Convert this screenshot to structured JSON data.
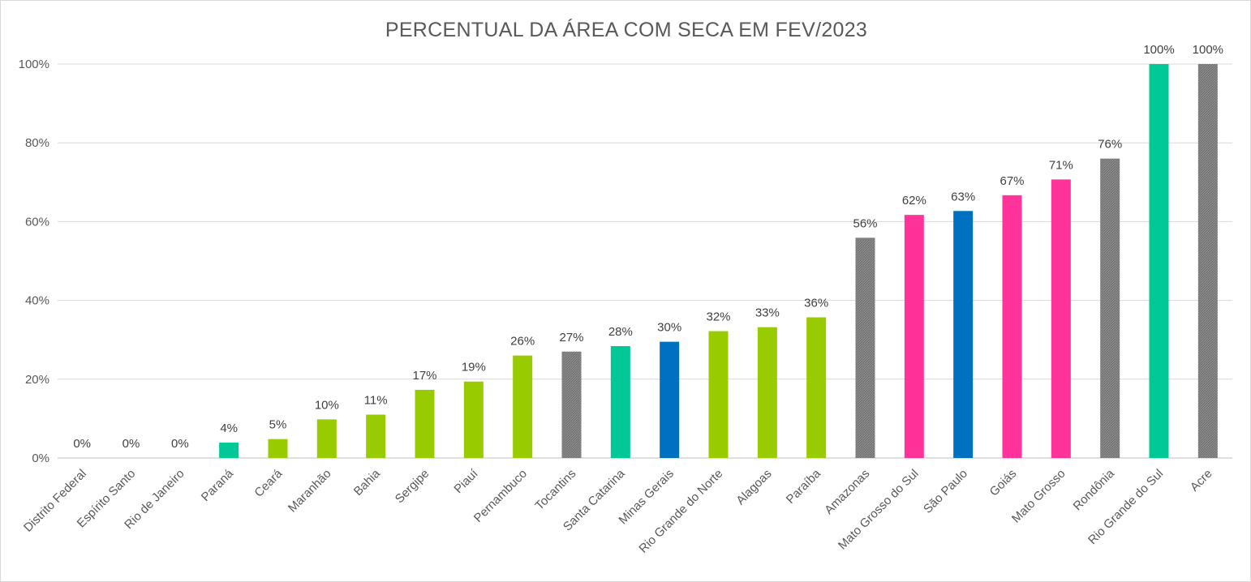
{
  "chart_data": {
    "type": "bar",
    "title": "PERCENTUAL DA ÁREA COM SECA EM FEV/2023",
    "xlabel": "",
    "ylabel": "",
    "ylim": [
      0,
      100
    ],
    "yticks": [
      0,
      20,
      40,
      60,
      80,
      100
    ],
    "ytick_labels": [
      "0%",
      "20%",
      "40%",
      "60%",
      "80%",
      "100%"
    ],
    "grid": true,
    "legend": "none",
    "categories": [
      "Distrito Federal",
      "Espírito Santo",
      "Rio de Janeiro",
      "Paraná",
      "Ceará",
      "Maranhão",
      "Bahia",
      "Sergipe",
      "Piauí",
      "Pernambuco",
      "Tocantins",
      "Santa Catarina",
      "Minas Gerais",
      "Rio Grande do Norte",
      "Alagoas",
      "Paraíba",
      "Amazonas",
      "Mato Grosso do Sul",
      "São Paulo",
      "Goiás",
      "Mato Grosso",
      "Rondônia",
      "Rio Grande do Sul",
      "Acre"
    ],
    "values": [
      0,
      0,
      0,
      3.9,
      4.8,
      9.8,
      11,
      17.3,
      19.4,
      26,
      27,
      28.4,
      29.5,
      32.2,
      33.2,
      35.7,
      55.9,
      61.7,
      62.7,
      66.7,
      70.7,
      76,
      100,
      100
    ],
    "data_labels": [
      "0%",
      "0%",
      "0%",
      "4%",
      "5%",
      "10%",
      "11%",
      "17%",
      "19%",
      "26%",
      "27%",
      "28%",
      "30%",
      "32%",
      "33%",
      "36%",
      "56%",
      "62%",
      "63%",
      "67%",
      "71%",
      "76%",
      "100%",
      "100%"
    ],
    "bar_colors": [
      "#99cc00",
      "#99cc00",
      "#99cc00",
      "#00c896",
      "#99cc00",
      "#99cc00",
      "#99cc00",
      "#99cc00",
      "#99cc00",
      "#99cc00",
      "#808080",
      "#00c896",
      "#0070c0",
      "#99cc00",
      "#99cc00",
      "#99cc00",
      "#808080",
      "#ff3399",
      "#0070c0",
      "#ff3399",
      "#ff3399",
      "#808080",
      "#00c896",
      "#808080"
    ],
    "bar_patterned": [
      false,
      false,
      false,
      false,
      false,
      false,
      false,
      false,
      false,
      false,
      true,
      false,
      false,
      false,
      false,
      false,
      true,
      false,
      false,
      false,
      false,
      true,
      false,
      true
    ]
  }
}
